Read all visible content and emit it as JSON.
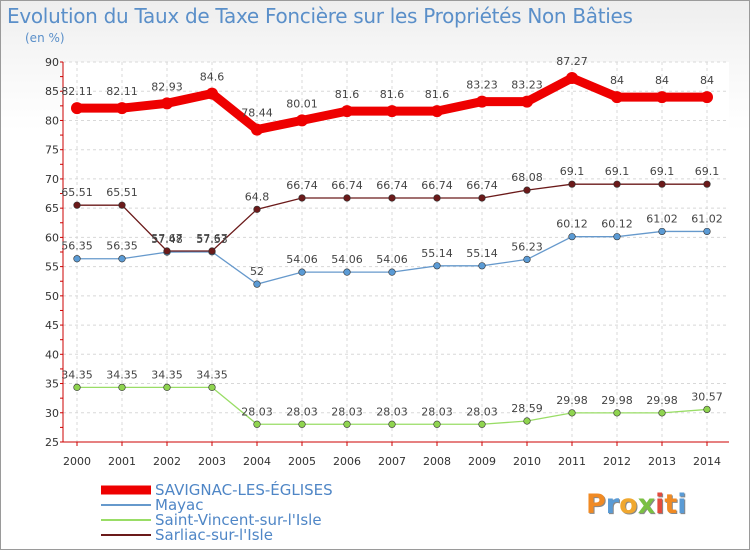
{
  "title": "Evolution du Taux de Taxe Foncière sur les Propriétés Non Bâties",
  "subtitle": "(en %)",
  "brand": "Proxiti",
  "chart_data": {
    "type": "line",
    "x": [
      "2000",
      "2001",
      "2002",
      "2003",
      "2004",
      "2005",
      "2006",
      "2007",
      "2008",
      "2009",
      "2010",
      "2011",
      "2012",
      "2013",
      "2014"
    ],
    "ylim": [
      25,
      90
    ],
    "yticks": [
      25,
      30,
      35,
      40,
      45,
      50,
      55,
      60,
      65,
      70,
      75,
      80,
      85,
      90
    ],
    "grid": true,
    "legend_position": "bottom-left",
    "series": [
      {
        "name": "SAVIGNAC-LES-ÉGLISES",
        "color": "#ee0000",
        "highlight": true,
        "values": [
          82.11,
          82.11,
          82.93,
          84.6,
          78.44,
          80.01,
          81.6,
          81.6,
          81.6,
          83.23,
          83.23,
          87.27,
          84,
          84,
          84
        ],
        "labels": [
          "82.11",
          "82.11",
          "82.93",
          "84.6",
          "78.44",
          "80.01",
          "81.6",
          "81.6",
          "81.6",
          "83.23",
          "83.23",
          "87.27",
          "84",
          "84",
          "84"
        ]
      },
      {
        "name": "Mayac",
        "color": "#6699cc",
        "marker": "#5b9bd5",
        "values": [
          56.35,
          56.35,
          57.48,
          57.53,
          52,
          54.06,
          54.06,
          54.06,
          55.14,
          55.14,
          56.23,
          60.12,
          60.12,
          61.02,
          61.02
        ],
        "labels": [
          "56.35",
          "56.35",
          "57.48",
          "57.53",
          "52",
          "54.06",
          "54.06",
          "54.06",
          "55.14",
          "55.14",
          "56.23",
          "60.12",
          "60.12",
          "61.02",
          "61.02"
        ]
      },
      {
        "name": "Saint-Vincent-sur-l'Isle",
        "color": "#99dd66",
        "marker": "#8fd44f",
        "values": [
          34.35,
          34.35,
          34.35,
          34.35,
          28.03,
          28.03,
          28.03,
          28.03,
          28.03,
          28.03,
          28.59,
          29.98,
          29.98,
          29.98,
          30.57
        ],
        "labels": [
          "34.35",
          "34.35",
          "34.35",
          "34.35",
          "28.03",
          "28.03",
          "28.03",
          "28.03",
          "28.03",
          "28.03",
          "28.59",
          "29.98",
          "29.98",
          "29.98",
          "30.57"
        ]
      },
      {
        "name": "Sarliac-sur-l'Isle",
        "color": "#6b1a1a",
        "marker": "#6b1a1a",
        "values": [
          65.51,
          65.51,
          57.67,
          57.67,
          64.8,
          66.74,
          66.74,
          66.74,
          66.74,
          66.74,
          68.08,
          69.1,
          69.1,
          69.1,
          69.1
        ],
        "labels": [
          "65.51",
          "65.51",
          "57.67",
          "57.67",
          "64.8",
          "66.74",
          "66.74",
          "66.74",
          "66.74",
          "66.74",
          "68.08",
          "69.1",
          "69.1",
          "69.1",
          "69.1"
        ]
      }
    ]
  }
}
